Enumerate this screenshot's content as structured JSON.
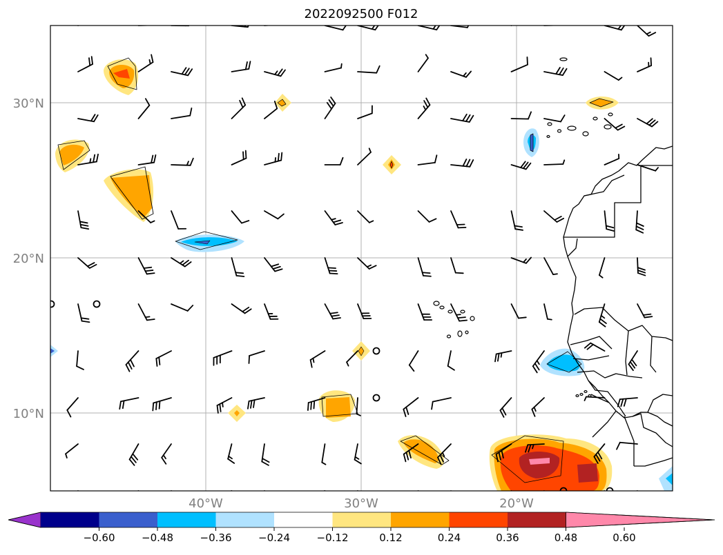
{
  "map": {
    "title": "2022092500 F012",
    "lat_labels": [
      "30°N",
      "20°N",
      "10°N"
    ],
    "lon_labels": [
      "40°W",
      "30°W",
      "20°W"
    ],
    "extent": {
      "lon_min": -50,
      "lon_max": -10,
      "lat_min": 5,
      "lat_max": 35
    },
    "gridlines": true
  },
  "colorbar": {
    "tick_labels": [
      "−0.60",
      "−0.48",
      "−0.36",
      "−0.24",
      "−0.12",
      "0.12",
      "0.24",
      "0.36",
      "0.48",
      "0.60"
    ],
    "colors": [
      "#9933cc",
      "#00008b",
      "#3a5fcd",
      "#00bfff",
      "#b0e2ff",
      "#ffffff",
      "#ffe680",
      "#ffa500",
      "#ff4500",
      "#b22222",
      "#ff88aa"
    ]
  },
  "chart_data": {
    "type": "heatmap",
    "title": "2022092500 F012",
    "xlabel": "",
    "ylabel": "",
    "xlim": [
      -50,
      -10
    ],
    "ylim": [
      5,
      35
    ],
    "levels": [
      -0.6,
      -0.48,
      -0.36,
      -0.24,
      -0.12,
      0.12,
      0.24,
      0.36,
      0.48,
      0.6
    ],
    "features": [
      {
        "lon": -45.5,
        "lat": 31.9,
        "value": 0.4
      },
      {
        "lon": -48.8,
        "lat": 26.7,
        "value": 0.28
      },
      {
        "lon": -45.0,
        "lat": 24.7,
        "value": 0.3
      },
      {
        "lon": -35.0,
        "lat": 30.0,
        "value": 0.2
      },
      {
        "lon": -28.0,
        "lat": 26.0,
        "value": 0.4
      },
      {
        "lon": -40.2,
        "lat": 21.0,
        "value": -0.32
      },
      {
        "lon": -13.8,
        "lat": 30.0,
        "value": 0.3
      },
      {
        "lon": -19.0,
        "lat": 27.5,
        "value": -0.4
      },
      {
        "lon": -30.0,
        "lat": 14.0,
        "value": 0.28
      },
      {
        "lon": -38.0,
        "lat": 10.0,
        "value": 0.26
      },
      {
        "lon": -31.3,
        "lat": 10.3,
        "value": 0.26
      },
      {
        "lon": -25.8,
        "lat": 7.0,
        "value": 0.3
      },
      {
        "lon": -16.8,
        "lat": 13.3,
        "value": -0.33
      },
      {
        "lon": -17.5,
        "lat": 6.8,
        "value": 0.6
      },
      {
        "lon": -13.8,
        "lat": 6.5,
        "value": 0.55
      },
      {
        "lon": -10.3,
        "lat": 5.5,
        "value": -0.3
      },
      {
        "lon": -50.0,
        "lat": 14.0,
        "value": -0.3
      }
    ]
  }
}
